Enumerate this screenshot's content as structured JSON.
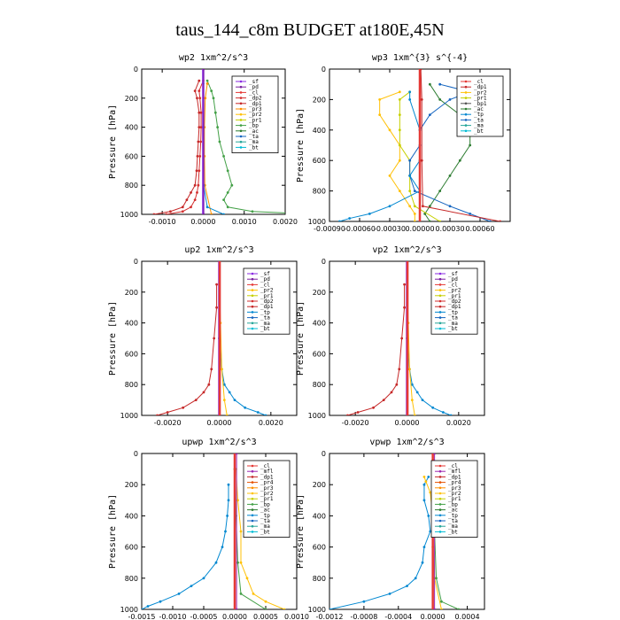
{
  "figure_title": "taus_144_c8m  BUDGET at180E,45N",
  "colors": {
    "sf": "#8a2be2",
    "pd": "#7b1fa2",
    "cl": "#e53935",
    "mfl": "#9c27b0",
    "dp2": "#d32f2f",
    "dp1": "#c62828",
    "pr4": "#e65100",
    "pr3": "#ff8f00",
    "pr2": "#ffc107",
    "pr1": "#c6d000",
    "bp": "#43a047",
    "ac": "#2e7d32",
    "tp": "#0288d1",
    "ta": "#1565c0",
    "ma": "#26a69a",
    "bt": "#00bcd4"
  },
  "chart_data": [
    {
      "type": "line",
      "title": "wp2   1xm^2/s^3",
      "ylabel": "Pressure  [hPa]",
      "xlim": [
        -0.0015,
        0.002
      ],
      "ylim": [
        1000,
        0
      ],
      "xticks": [
        -0.001,
        0.0,
        0.001,
        0.002
      ],
      "xtick_labels": [
        "-0.0010",
        "0.0000",
        "0.0010",
        "0.0020"
      ],
      "yticks": [
        0,
        200,
        400,
        600,
        800,
        1000
      ],
      "legend": [
        "_sf",
        "_pd",
        "_cl",
        "_dp2",
        "_dp1",
        "_pr3",
        "_pr2",
        "_pr1",
        "_bp",
        "_ac",
        "_ta",
        "_ma",
        "_bt"
      ],
      "legend_loc": "top-right",
      "series": [
        {
          "name": "_bp",
          "p": [
            80,
            150,
            200,
            300,
            400,
            500,
            600,
            700,
            800,
            850,
            900,
            950,
            980,
            1000
          ],
          "v": [
            0.0001,
            0.0002,
            0.00025,
            0.0003,
            0.00035,
            0.0004,
            0.0005,
            0.0006,
            0.0007,
            0.0006,
            0.0005,
            0.0006,
            0.0012,
            0.0028
          ]
        },
        {
          "name": "_dp1",
          "p": [
            80,
            150,
            200,
            300,
            400,
            500,
            600,
            700,
            800,
            850,
            900,
            950,
            980,
            1000
          ],
          "v": [
            -0.0001,
            -0.0002,
            -0.00015,
            -0.0001,
            -0.0001,
            -0.00012,
            -0.00014,
            -0.00016,
            -0.0002,
            -0.0003,
            -0.0004,
            -0.0005,
            -0.0008,
            -0.0012
          ]
        },
        {
          "name": "_dp2",
          "p": [
            80,
            150,
            200,
            300,
            400,
            500,
            600,
            700,
            800,
            850,
            900,
            950,
            980,
            1000
          ],
          "v": [
            0,
            -0.0001,
            -8e-05,
            -5e-05,
            -5e-05,
            -6e-05,
            -8e-05,
            -0.0001,
            -0.00012,
            -0.00015,
            -0.0002,
            -0.0003,
            -0.0005,
            -0.0009
          ]
        },
        {
          "name": "_pr3",
          "p": [
            100,
            200,
            400,
            600,
            800,
            1000
          ],
          "v": [
            0.0001,
            5e-05,
            3e-05,
            3e-05,
            4e-05,
            0.0002
          ]
        },
        {
          "name": "_tp",
          "p": [
            100,
            400,
            800,
            950,
            1000
          ],
          "v": [
            0,
            0,
            1e-05,
            0.0001,
            0.0005
          ]
        },
        {
          "name": "_sf",
          "p": [
            0,
            1000
          ],
          "v": [
            0,
            0
          ]
        },
        {
          "name": "_pd",
          "p": [
            0,
            1000
          ],
          "v": [
            1e-05,
            1e-05
          ]
        }
      ]
    },
    {
      "type": "line",
      "title": "wp3   1xm^{3} s^{-4}",
      "ylabel": "Pressure  [hPa]",
      "xlim": [
        -0.0009,
        0.0009
      ],
      "ylim": [
        1000,
        0
      ],
      "xticks": [
        -0.0009,
        -0.0006,
        -0.0003,
        0.0,
        0.0003,
        0.0006
      ],
      "xtick_labels": [
        "-0.00090",
        "-0.00060",
        "-0.00030",
        "0.00000",
        "0.00030",
        "0.00060"
      ],
      "yticks": [
        0,
        200,
        400,
        600,
        800,
        1000
      ],
      "legend": [
        "_cl",
        "_dp1",
        "_pr2",
        "_pr1",
        "_bp1",
        "_ac",
        "_tp",
        "_ta",
        "_ma",
        "_bt"
      ],
      "legend_loc": "top-right",
      "series": [
        {
          "name": "_ac",
          "p": [
            100,
            200,
            300,
            400,
            500,
            600,
            700,
            800,
            900,
            950,
            1000
          ],
          "v": [
            0.0001,
            0.0002,
            0.0004,
            0.0005,
            0.0005,
            0.0004,
            0.0003,
            0.0002,
            0.0001,
            5e-05,
            0.0001
          ]
        },
        {
          "name": "_pr2",
          "p": [
            150,
            200,
            300,
            400,
            500,
            600,
            700,
            800,
            900,
            950,
            1000
          ],
          "v": [
            -0.0002,
            -0.0004,
            -0.0004,
            -0.0003,
            -0.0002,
            -0.0002,
            -0.0003,
            -0.0002,
            -0.0001,
            -5e-05,
            -5e-05
          ]
        },
        {
          "name": "_pr1",
          "p": [
            150,
            200,
            300,
            400,
            500,
            600,
            700,
            800,
            900,
            1000
          ],
          "v": [
            -0.0001,
            -0.0002,
            -0.0002,
            -0.0002,
            -0.0002,
            -0.0001,
            -0.0001,
            -0.0001,
            -5e-05,
            0.0002
          ]
        },
        {
          "name": "_ta",
          "p": [
            100,
            150,
            200,
            300,
            400,
            500,
            600,
            700,
            800,
            900,
            950,
            1000
          ],
          "v": [
            0.0002,
            0.0005,
            0.0003,
            0.0001,
            0,
            0,
            -0.0001,
            -0.0001,
            -5e-05,
            0.0003,
            0.0005,
            0.0007
          ]
        },
        {
          "name": "_tp",
          "p": [
            150,
            200,
            400,
            600,
            700,
            800,
            900,
            950,
            980,
            1000
          ],
          "v": [
            -0.0001,
            -0.0001,
            0,
            0,
            -0.0001,
            0,
            -0.0003,
            -0.0005,
            -0.0007,
            -0.0008
          ]
        },
        {
          "name": "_cl",
          "p": [
            0,
            1000
          ],
          "v": [
            0,
            0
          ]
        },
        {
          "name": "_dp1",
          "p": [
            0,
            200,
            600,
            900,
            1000
          ],
          "v": [
            1e-05,
            2e-05,
            2e-05,
            3e-05,
            0.0008
          ]
        }
      ]
    },
    {
      "type": "line",
      "title": "up2   1xm^2/s^3",
      "ylabel": "Pressure  [hPa]",
      "xlim": [
        -0.003,
        0.003
      ],
      "ylim": [
        1000,
        0
      ],
      "xticks": [
        -0.002,
        0.0,
        0.002
      ],
      "xtick_labels": [
        "-0.0020",
        "0.0000",
        "0.0020"
      ],
      "yticks": [
        0,
        200,
        400,
        600,
        800,
        1000
      ],
      "legend": [
        "_sf",
        "_pd",
        "_cl",
        "_pr2",
        "_pr1",
        "_dp2",
        "_dp1",
        "_tp",
        "_ta",
        "_ma",
        "_bt"
      ],
      "legend_loc": "top-right",
      "series": [
        {
          "name": "_dp1",
          "p": [
            150,
            300,
            500,
            700,
            800,
            850,
            900,
            950,
            980,
            1000
          ],
          "v": [
            -0.0001,
            -0.0001,
            -0.0002,
            -0.0003,
            -0.0004,
            -0.0006,
            -0.0009,
            -0.0014,
            -0.002,
            -0.0024
          ]
        },
        {
          "name": "_tp",
          "p": [
            500,
            700,
            800,
            850,
            900,
            950,
            980,
            1000
          ],
          "v": [
            0,
            0.0001,
            0.0002,
            0.0004,
            0.0006,
            0.001,
            0.0015,
            0.0018
          ]
        },
        {
          "name": "_pr2",
          "p": [
            150,
            400,
            700,
            900,
            1000
          ],
          "v": [
            0,
            5e-05,
            0.0001,
            0.0002,
            0.0003
          ]
        },
        {
          "name": "_sf",
          "p": [
            0,
            1000
          ],
          "v": [
            0,
            0
          ]
        },
        {
          "name": "_cl",
          "p": [
            0,
            1000
          ],
          "v": [
            2e-05,
            2e-05
          ]
        }
      ]
    },
    {
      "type": "line",
      "title": "vp2   1xm^2/s^3",
      "ylabel": "Pressure  [hPa]",
      "xlim": [
        -0.003,
        0.003
      ],
      "ylim": [
        1000,
        0
      ],
      "xticks": [
        -0.002,
        0.0,
        0.002
      ],
      "xtick_labels": [
        "-0.0020",
        "0.0000",
        "0.0020"
      ],
      "yticks": [
        0,
        200,
        400,
        600,
        800,
        1000
      ],
      "legend": [
        "_sf",
        "_pd",
        "_cl",
        "_pr2",
        "_pr1",
        "_dp2",
        "_dp1",
        "_tp",
        "_ta",
        "_ma",
        "_bt"
      ],
      "legend_loc": "top-right",
      "series": [
        {
          "name": "_dp1",
          "p": [
            150,
            300,
            500,
            700,
            800,
            850,
            900,
            950,
            980,
            1000
          ],
          "v": [
            -0.0001,
            -0.0001,
            -0.0002,
            -0.0003,
            -0.0004,
            -0.0006,
            -0.0009,
            -0.0013,
            -0.0019,
            -0.0023
          ]
        },
        {
          "name": "_tp",
          "p": [
            500,
            700,
            800,
            850,
            900,
            950,
            980,
            1000
          ],
          "v": [
            0,
            0.0001,
            0.0002,
            0.0004,
            0.0006,
            0.001,
            0.0014,
            0.0017
          ]
        },
        {
          "name": "_pr2",
          "p": [
            150,
            400,
            700,
            900,
            1000
          ],
          "v": [
            0,
            5e-05,
            0.0001,
            0.0002,
            0.0003
          ]
        },
        {
          "name": "_sf",
          "p": [
            0,
            1000
          ],
          "v": [
            0,
            0
          ]
        },
        {
          "name": "_cl",
          "p": [
            0,
            1000
          ],
          "v": [
            2e-05,
            2e-05
          ]
        }
      ]
    },
    {
      "type": "line",
      "title": "upwp   1xm^2/s^3",
      "ylabel": "Pressure  [hPa]",
      "xlim": [
        -0.0015,
        0.001
      ],
      "ylim": [
        1000,
        0
      ],
      "xticks": [
        -0.0015,
        -0.001,
        -0.0005,
        0.0,
        0.0005,
        0.001
      ],
      "xtick_labels": [
        "-0.0015",
        "-0.0010",
        "-0.0005",
        "0.0000",
        "0.0005",
        "0.0010"
      ],
      "yticks": [
        0,
        200,
        400,
        600,
        800,
        1000
      ],
      "legend": [
        "_cl",
        "_mfl",
        "_dp1",
        "_pr4",
        "_pr3",
        "_pr2",
        "_pr1",
        "_bp",
        "_ac",
        "_tp",
        "_ta",
        "_ma",
        "_bt"
      ],
      "legend_loc": "top-right",
      "series": [
        {
          "name": "_tp",
          "p": [
            200,
            300,
            400,
            500,
            600,
            700,
            800,
            850,
            900,
            950,
            980,
            1000
          ],
          "v": [
            -0.0001,
            -0.0001,
            -0.00012,
            -0.00015,
            -0.0002,
            -0.0003,
            -0.0005,
            -0.0007,
            -0.0009,
            -0.0012,
            -0.0014,
            -0.0015
          ]
        },
        {
          "name": "_pr2",
          "p": [
            100,
            300,
            500,
            700,
            800,
            900,
            950,
            1000
          ],
          "v": [
            2e-05,
            5e-05,
            0.0001,
            0.0001,
            0.0002,
            0.0003,
            0.0005,
            0.0008
          ]
        },
        {
          "name": "_bp",
          "p": [
            100,
            400,
            700,
            900,
            1000
          ],
          "v": [
            0,
            2e-05,
            5e-05,
            0.0001,
            0.0005
          ]
        },
        {
          "name": "_cl",
          "p": [
            0,
            1000
          ],
          "v": [
            0,
            0
          ]
        },
        {
          "name": "_mfl",
          "p": [
            0,
            1000
          ],
          "v": [
            3e-05,
            3e-05
          ]
        }
      ]
    },
    {
      "type": "line",
      "title": "vpwp   1xm^2/s^3",
      "ylabel": "Pressure  [hPa]",
      "xlim": [
        -0.0012,
        0.0006
      ],
      "ylim": [
        1000,
        0
      ],
      "xticks": [
        -0.0012,
        -0.0008,
        -0.0004,
        0.0,
        0.0004
      ],
      "xtick_labels": [
        "-0.0012",
        "-0.0008",
        "-0.0004",
        "0.0000",
        "0.0004"
      ],
      "yticks": [
        0,
        200,
        400,
        600,
        800,
        1000
      ],
      "legend": [
        "_cl",
        "_mfl",
        "_dp1",
        "_pr4",
        "_pr3",
        "_pr2",
        "_pr1",
        "_bp",
        "_ac",
        "_tp",
        "_ta",
        "_ma",
        "_bt"
      ],
      "legend_loc": "top-right",
      "series": [
        {
          "name": "_tp",
          "p": [
            150,
            200,
            300,
            400,
            500,
            600,
            700,
            800,
            850,
            900,
            950,
            1000
          ],
          "v": [
            -5e-05,
            -0.0001,
            -0.0001,
            -5e-05,
            -3e-05,
            -0.0001,
            -0.00012,
            -0.0002,
            -0.0003,
            -0.0005,
            -0.0008,
            -0.0012
          ]
        },
        {
          "name": "_pr2",
          "p": [
            150,
            180,
            250,
            400,
            600,
            800,
            1000
          ],
          "v": [
            -0.0001,
            -8e-05,
            -3e-05,
            0,
            0,
            2e-05,
            0.0001
          ]
        },
        {
          "name": "_bp",
          "p": [
            100,
            500,
            800,
            950,
            1000
          ],
          "v": [
            0,
            2e-05,
            4e-05,
            0.0001,
            0.0003
          ]
        },
        {
          "name": "_cl",
          "p": [
            0,
            1000
          ],
          "v": [
            0,
            0
          ]
        },
        {
          "name": "_mfl",
          "p": [
            0,
            1000
          ],
          "v": [
            2e-05,
            2e-05
          ]
        }
      ]
    }
  ]
}
